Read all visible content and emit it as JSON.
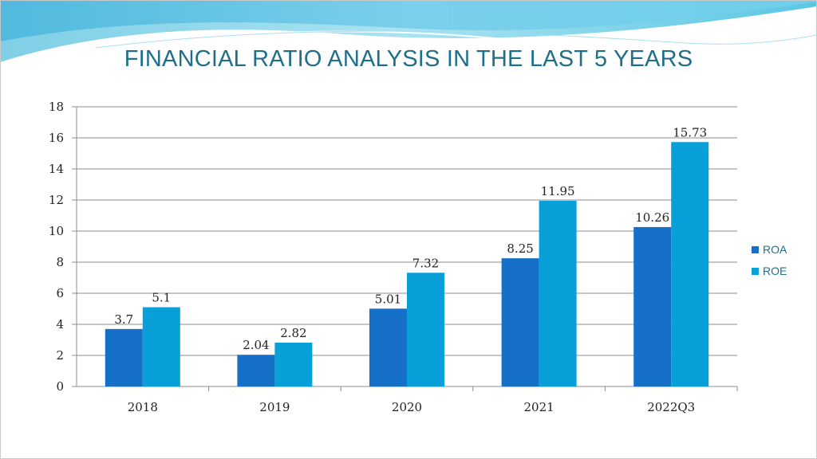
{
  "slide": {
    "title": "FINANCIAL RATIO ANALYSIS IN THE LAST 5 YEARS"
  },
  "colors": {
    "title": "#1f6f8b",
    "banner_light": "#bfe9f4",
    "banner_mid": "#6fcde6",
    "grid": "#8c8c8c"
  },
  "chart_data": {
    "type": "bar",
    "title": "FINANCIAL RATIO ANALYSIS IN THE LAST 5 YEARS",
    "categories": [
      "2018",
      "2019",
      "2020",
      "2021",
      "2022Q3"
    ],
    "series": [
      {
        "name": "ROA",
        "color": "#1670c8",
        "values": [
          3.7,
          2.04,
          5.01,
          8.25,
          10.26
        ],
        "labels": [
          "3.7",
          "2.04",
          "5.01",
          "8.25",
          "10.26"
        ]
      },
      {
        "name": "ROE",
        "color": "#099fd8",
        "values": [
          5.1,
          2.82,
          7.32,
          11.95,
          15.73
        ],
        "labels": [
          "5.1",
          "2.82",
          "7.32",
          "11.95",
          "15.73"
        ]
      }
    ],
    "ylim": [
      0,
      18
    ],
    "yticks": [
      0,
      2,
      4,
      6,
      8,
      10,
      12,
      14,
      16,
      18
    ],
    "grid": true,
    "legend": "right",
    "xlabel": "",
    "ylabel": ""
  }
}
